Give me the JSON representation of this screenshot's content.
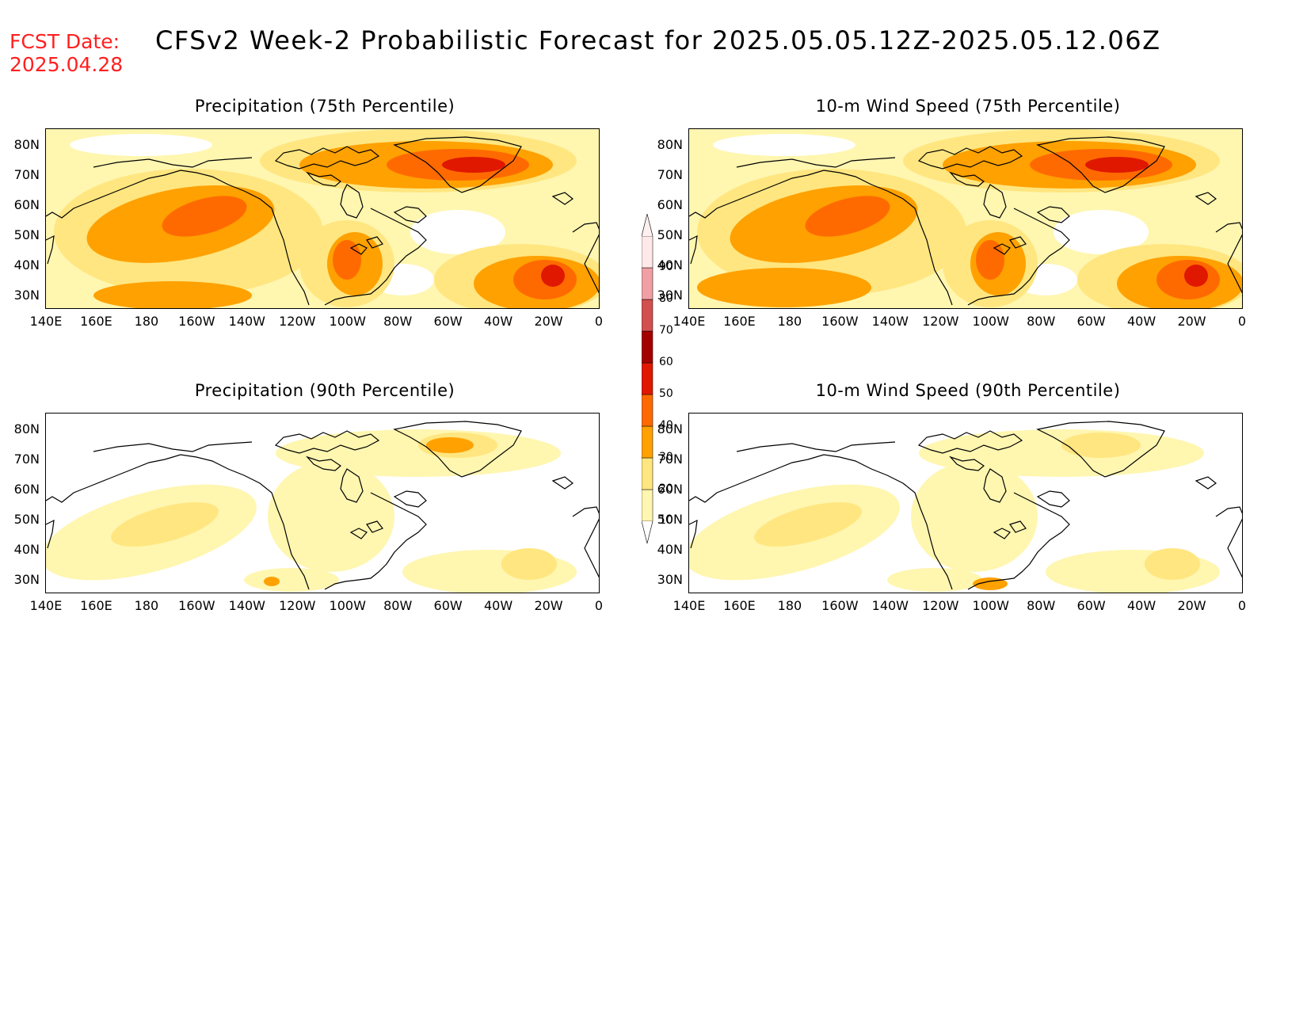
{
  "header": {
    "fcst_label": "FCST Date:",
    "fcst_date": "2025.04.28",
    "title": "CFSv2 Week-2 Probabilistic Forecast for 2025.05.05.12Z-2025.05.12.06Z"
  },
  "panels": [
    {
      "title": "Precipitation (75th Percentile)",
      "intensity": "high"
    },
    {
      "title": "10-m Wind Speed (75th Percentile)",
      "intensity": "high"
    },
    {
      "title": "Precipitation (90th Percentile)",
      "intensity": "low"
    },
    {
      "title": "10-m Wind Speed (90th Percentile)",
      "intensity": "low"
    }
  ],
  "lat_labels": [
    "80N",
    "70N",
    "60N",
    "50N",
    "40N",
    "30N"
  ],
  "lon_labels": [
    "140E",
    "160E",
    "180",
    "160W",
    "140W",
    "120W",
    "100W",
    "80W",
    "60W",
    "40W",
    "20W",
    "0"
  ],
  "colorbar": {
    "levels": [
      "10",
      "20",
      "30",
      "40",
      "50",
      "60",
      "70",
      "80",
      "90"
    ],
    "colors": [
      "#fff6b0",
      "#ffe680",
      "#ffa100",
      "#ff6a00",
      "#e01800",
      "#a50000",
      "#d25050",
      "#f0a0a5",
      "#ffe8e8"
    ]
  }
}
